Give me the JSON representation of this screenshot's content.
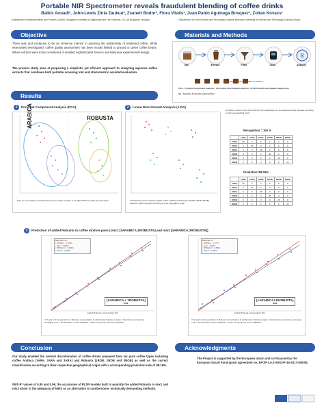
{
  "header": {
    "title": "Portable NIR Spectrometer reveals fraudulent blending of coffee drinks",
    "authors": "Balkis Aouadi¹, John-Lewis Zinia Zaukuu², Zsanett Bodor¹, Flora Vitalis¹, Juan Pablo Aguinaga Bosquez¹, Zoltan Kovacs¹",
    "affiliation1": "¹ Department of Measurements and Process Control, Hungarian University of Agriculture and Life Sciences, H-1118 Budapest, Hungary",
    "affiliation2": "² Department of Food Science and Technology, Kwame Nkrumah University of Science and Technology, Kumasi-Ghana"
  },
  "objective": {
    "heading": "Objective",
    "paragraph": "There was and continues to be an immense interest in assuring the authenticity of marketed coffee. While extensively investigated, coffee quality assessment has been mostly limited to ground or green coffee beans. When extracts were to be considered, it entailed sophisticated devices and laborious experimental design.",
    "aim": "The present study aims at proposing a simplistic yet efficient approach to analyzing aqueous coffee extracts that combines both portable scanning tool and chemometric assisted evaluation."
  },
  "methods": {
    "heading": "Materials and Methods",
    "steps": [
      "Mix",
      "Extract",
      "Filter",
      "Scan",
      "Analyze"
    ],
    "legend_note": "• : Percentage of Robusta added to Arabica",
    "abbr1": "PCA : Principal Component Analysis ; LDA Linear Discriminant Analysis ; PLSR Partial Least Squares Regression",
    "abbr2": "SG : Savitzky Golay Smoothing Filter"
  },
  "results": {
    "heading": "Results",
    "pca": {
      "number": "1",
      "title": "Principal Component Analysis  (PCA)",
      "group_left": "ARABICA",
      "group_right": "ROBUSTA",
      "caption": "PCA on pure Arabica and Robusta aqueous coffee samples in the (900-1600 nm) NIR spectral region"
    },
    "lda": {
      "number": "2",
      "title": "Linear Discriminant Analysis  ( LDA)",
      "caption1": "Classification plot of Arabica (1ARA, 2ARA, 3ARA) and Robusta (1ROB, 2ROB, 3ROB) aqueous coffee samples according to their geographic origin"
    },
    "conf": {
      "note": "Confusion matrix of the LDA model for the classification of the aqueous coffee samples according to their geographical origin",
      "recognition": "Recognition = 100 %",
      "prediction": "Prediction=98.16%",
      "headers": [
        "",
        "1ARA",
        "2ARA",
        "3ARA",
        "1ROB",
        "2ROB",
        "3ROB"
      ],
      "rows": [
        [
          "1ARA",
          "36",
          "0",
          "0",
          "0",
          "0",
          "0"
        ],
        [
          "2ARA",
          "0",
          "36",
          "0",
          "0",
          "0",
          "0"
        ],
        [
          "3ARA",
          "0",
          "0",
          "36",
          "0",
          "0",
          "0"
        ],
        [
          "1ROB",
          "0",
          "0",
          "0",
          "36",
          "0",
          "0"
        ],
        [
          "2ROB",
          "0",
          "0",
          "0",
          "0",
          "36",
          "0"
        ],
        [
          "3ROB",
          "0",
          "0",
          "0",
          "0",
          "0",
          "36"
        ]
      ]
    },
    "pred": {
      "number": "3",
      "title": "Prediction of added Robusta in coffee mixture pairs ( mix1 [1ARABICA,1ROBUSTA] and mix3 [3ARABICA,3ROBUSTA])",
      "left_label": "[1ARABICA + 1ROBUSTA]",
      "left_sub": "mix",
      "right_label": "[1ARABICA+1ROBUSTA]",
      "right_sub": "mix",
      "left_stats": [
        "Ricomps: 12",
        "• RMSEC : 1.5490",
        "• R2C : 0.9850",
        "• RMSECV : 3.2580",
        "• R2CV : 0.9300"
      ],
      "right_stats": [
        "Ricomps: 8",
        "• RMSEC : 2.1077",
        "• R2C : 0.9651",
        "• RMSECV : 4.8451",
        "• R2CV : 0.8500"
      ],
      "left_caption": "Y fit graph of the prediction of Robusta concentration in adulterated Arabica samples ; Spectral pre-processing: averaging +SG + 1st derivative ;Cross validation : Leave one group out Cross validation",
      "right_caption": "Y fit graph of the prediction of Robusta concentration in adulterated Arabica samples ; Spectral pre-processing: averaging +SG + 1st derivative ;Cross validation : Leave one group out Cross validation",
      "xaxis": "Added Robusta concentration [%]",
      "yaxis": "NIRS Predicted Robusta concentration %"
    }
  },
  "conclusion": {
    "heading": "Conclusion",
    "p1": "Our study enabled the varietal discrimination of coffee drinks prepared from six pure coffee types including coffee Arabica (1ARA, 2ARA and 3ARA) and Robusta (1ROB, 2ROB and 3ROB) as well as the correct classification according to their respective geographical origin with a corresponding prediction rate of 98.16%.",
    "p2": "With R² values of 0.85 and 0.96, the accuracies of PLSR models built to quantify the added Robusta in mix1 and mix3 attest to the adequacy of NIRS as an alternative to cumbersome, technically demanding methods."
  },
  "ack": {
    "heading": "Acknowledgments",
    "text": "The Project is supported by the European Union and co-financed by the European Social Fund (grant agreement no. EFOP-3.6.3-VEKOP-16-2017-00005)"
  },
  "colors": {
    "primary": "#2e5ca8",
    "arabica_ellipse": "#4aa3df",
    "robusta_ellipse": "#8fd14f"
  }
}
